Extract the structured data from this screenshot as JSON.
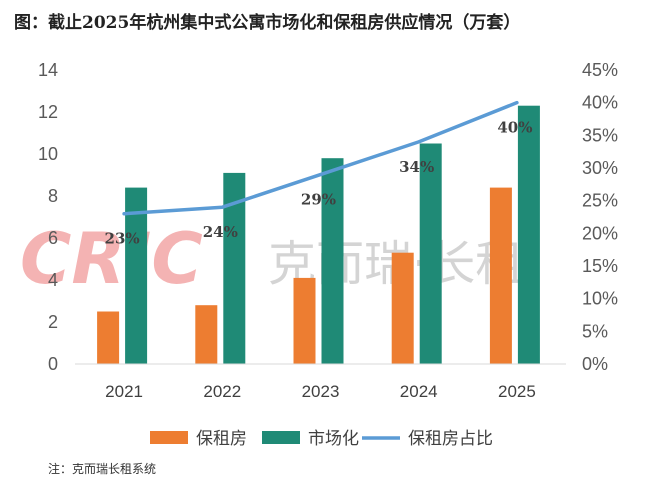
{
  "title": "图：截止2025年杭州集中式公寓市场化和保租房供应情况（万套）",
  "source": "注：克而瑞长租系统",
  "watermark": {
    "logo": "CRIC",
    "text": "克而瑞·长租"
  },
  "colors": {
    "bar1": "#ed7d31",
    "bar2": "#1f8a76",
    "line": "#5b9bd5"
  },
  "chart_data": {
    "type": "bar",
    "categories": [
      "2021",
      "2022",
      "2023",
      "2024",
      "2025"
    ],
    "series": [
      {
        "name": "保租房",
        "type": "bar",
        "axis": "left",
        "values": [
          2.5,
          2.8,
          4.1,
          5.3,
          8.4
        ]
      },
      {
        "name": "市场化",
        "type": "bar",
        "axis": "left",
        "values": [
          8.4,
          9.1,
          9.8,
          10.5,
          12.3
        ]
      },
      {
        "name": "保租房占比",
        "type": "line",
        "axis": "right",
        "values": [
          23,
          24,
          29,
          34,
          40
        ],
        "labels": [
          "23%",
          "24%",
          "29%",
          "34%",
          "40%"
        ]
      }
    ],
    "ylim": [
      0,
      14
    ],
    "yticks": [
      0,
      2,
      4,
      6,
      8,
      10,
      12,
      14
    ],
    "y2lim": [
      0,
      45
    ],
    "y2ticks": [
      "0%",
      "5%",
      "10%",
      "15%",
      "20%",
      "25%",
      "30%",
      "35%",
      "40%",
      "45%"
    ],
    "legend": "bottom",
    "grid": false
  }
}
